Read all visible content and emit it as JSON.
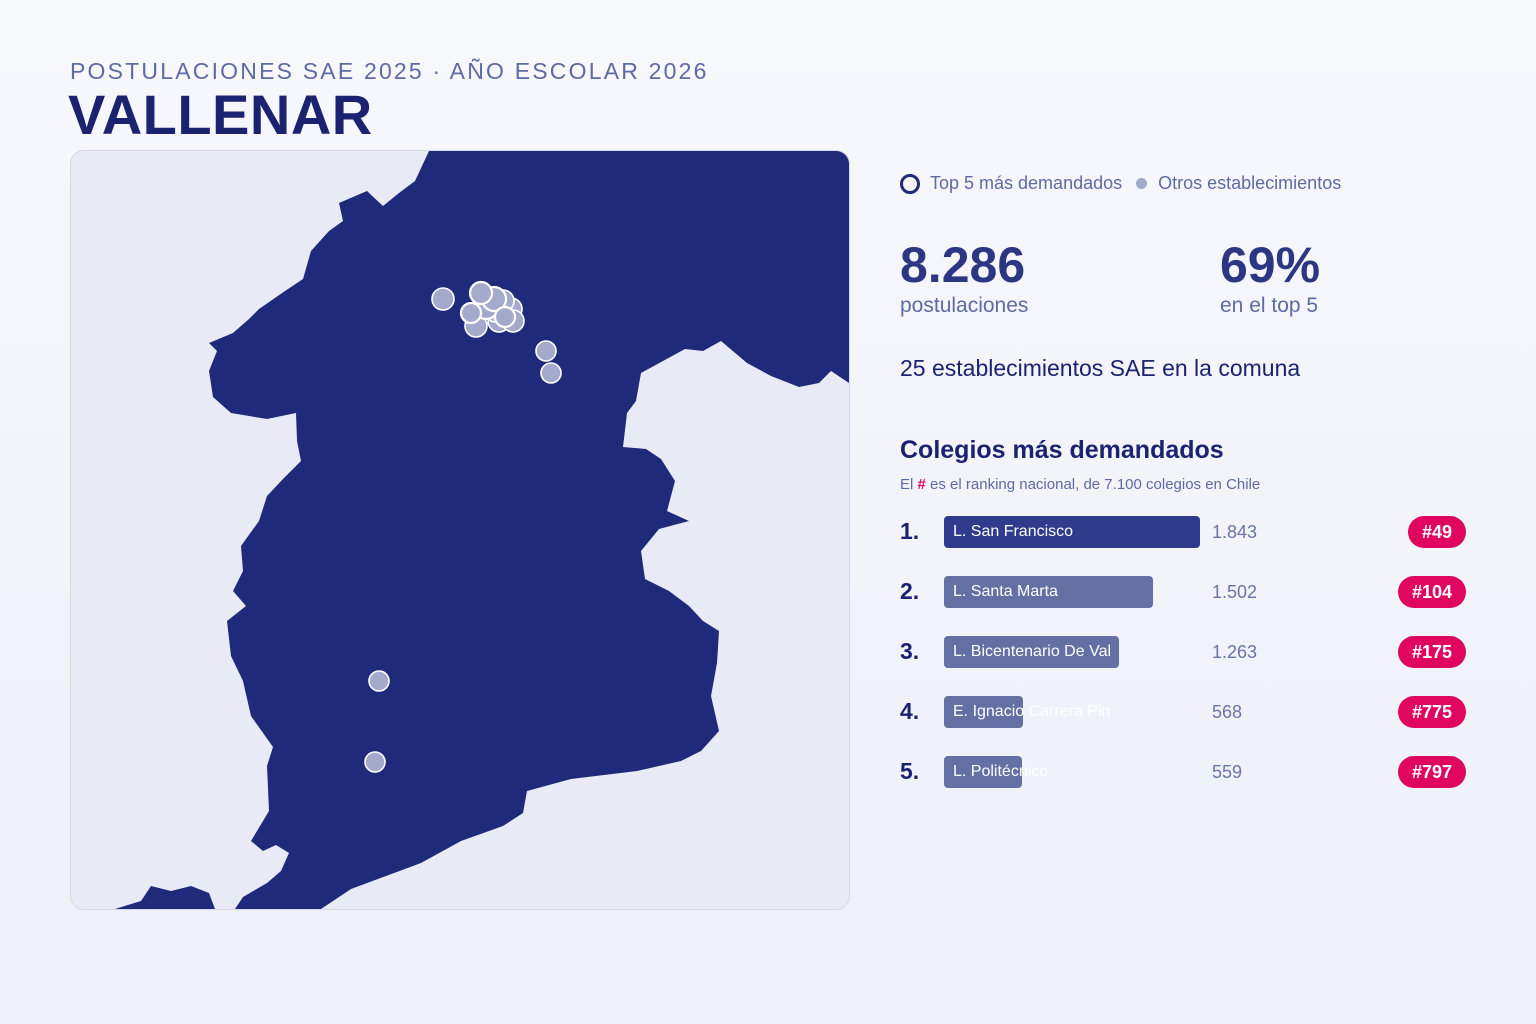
{
  "header": {
    "subtitle": "POSTULACIONES SAE 2025 · AÑO ESCOLAR 2026",
    "title": "VALLENAR"
  },
  "legend": {
    "top5_label": "Top 5 más demandados",
    "others_label": "Otros establecimientos"
  },
  "stats": {
    "applications_value": "8.286",
    "applications_label": "postulaciones",
    "top5_share_value": "69%",
    "top5_share_label": "en el top 5"
  },
  "schools_count_text": "25 establecimientos SAE en la comuna",
  "ranking": {
    "title": "Colegios más demandados",
    "note_prefix": "El",
    "note_hash": "#",
    "note_suffix": "es el ranking nacional, de 7.100 colegios en Chile",
    "items": [
      {
        "rank": "1.",
        "name": "L. San Francisco",
        "value_text": "1.843",
        "value": 1843,
        "national_rank": "#49"
      },
      {
        "rank": "2.",
        "name": "L. Santa Marta",
        "value_text": "1.502",
        "value": 1502,
        "national_rank": "#104"
      },
      {
        "rank": "3.",
        "name": "L. Bicentenario De Val",
        "value_text": "1.263",
        "value": 1263,
        "national_rank": "#175"
      },
      {
        "rank": "4.",
        "name": "E. Ignacio Carrera Pin",
        "value_text": "568",
        "value": 568,
        "national_rank": "#775"
      },
      {
        "rank": "5.",
        "name": "L. Politécnico",
        "value_text": "559",
        "value": 559,
        "national_rank": "#797"
      }
    ]
  },
  "colors": {
    "commune_fill": "#1f2a7a",
    "map_background": "#e8ebf5",
    "bar_first": "#2f3b8c",
    "bar_other": "#6470a4",
    "badge": "#e0065f",
    "school_marker": "#a3aacb"
  }
}
